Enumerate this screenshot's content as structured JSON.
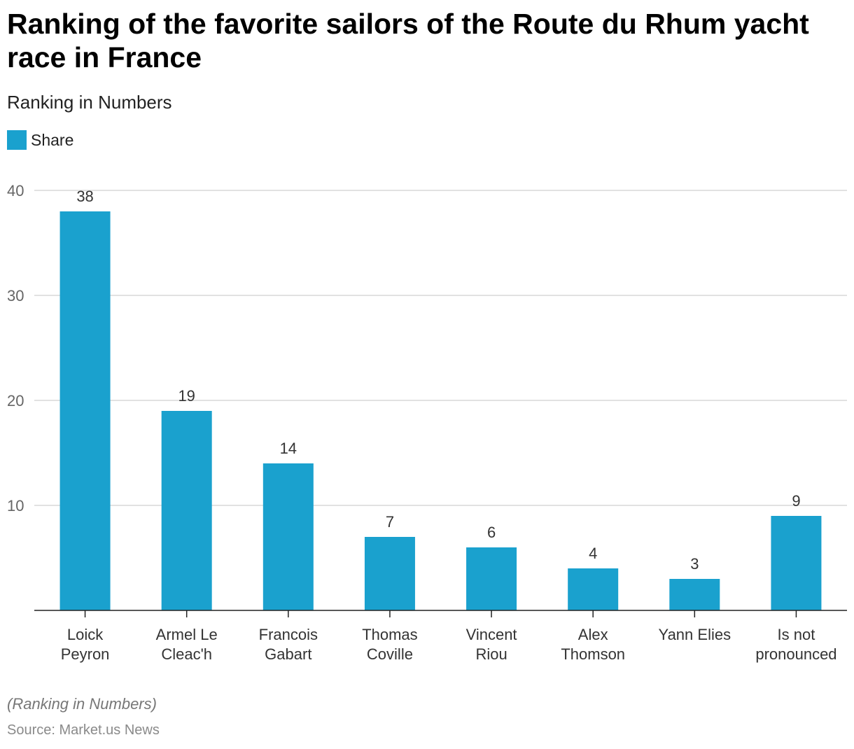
{
  "title": "Ranking of the favorite sailors of the Route du Rhum yacht race in France",
  "subtitle": "Ranking in Numbers",
  "footnote": "(Ranking in Numbers)",
  "source": "Source: Market.us News",
  "colors": {
    "bar": "#1aa1ce",
    "grid": "#d9d9d9",
    "axis": "#222222",
    "tick_text": "#666666",
    "label_text": "#333333"
  },
  "chart_data": {
    "type": "bar",
    "categories": [
      [
        "Loick",
        "Peyron"
      ],
      [
        "Armel Le",
        "Cleac'h"
      ],
      [
        "Francois",
        "Gabart"
      ],
      [
        "Thomas",
        "Coville"
      ],
      [
        "Vincent",
        "Riou"
      ],
      [
        "Alex",
        "Thomson"
      ],
      [
        "Yann Elies"
      ],
      [
        "Is not",
        "pronounced"
      ]
    ],
    "series": [
      {
        "name": "Share",
        "values": [
          38,
          19,
          14,
          7,
          6,
          4,
          3,
          9
        ]
      }
    ],
    "yticks": [
      10,
      20,
      30,
      40
    ],
    "ylim": [
      0,
      40
    ],
    "grid": true,
    "legend_position": "top-left",
    "data_labels": true
  }
}
